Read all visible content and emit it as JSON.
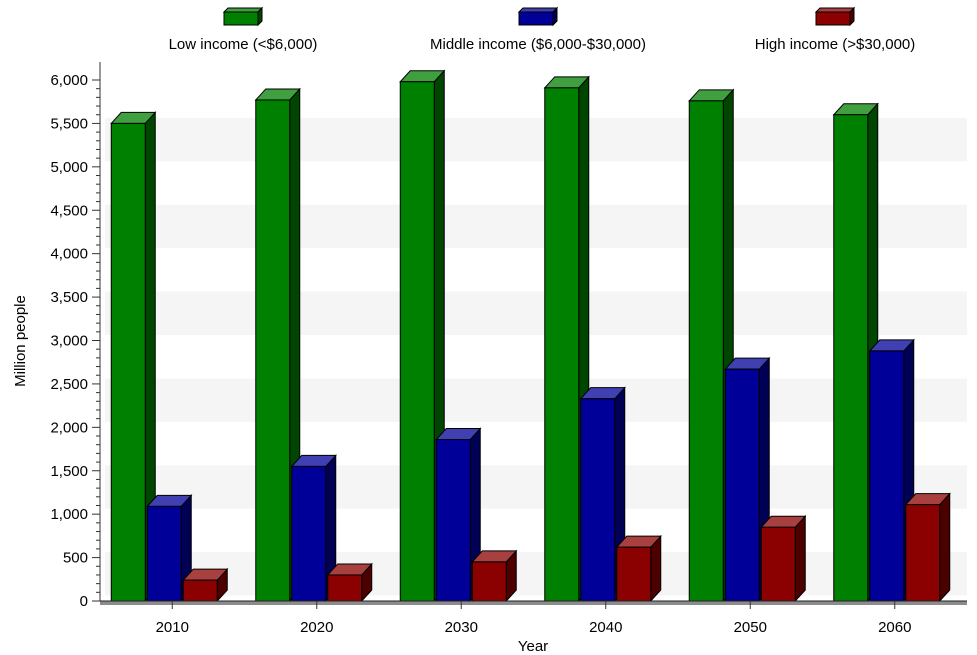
{
  "chart_data": {
    "type": "bar",
    "title": "",
    "xlabel": "Year",
    "ylabel": "Million people",
    "categories": [
      "2010",
      "2020",
      "2030",
      "2040",
      "2050",
      "2060"
    ],
    "ylim": [
      0,
      6000
    ],
    "yticks": [
      0,
      500,
      1000,
      1500,
      2000,
      2500,
      3000,
      3500,
      4000,
      4500,
      5000,
      5500,
      6000
    ],
    "ytick_labels": [
      "0",
      "500",
      "1,000",
      "1,500",
      "2,000",
      "2,500",
      "3,000",
      "3,500",
      "4,000",
      "4,500",
      "5,000",
      "5,500",
      "6,000"
    ],
    "grid": "horizontal alternating bands",
    "legend_position": "top",
    "style": "3d",
    "series": [
      {
        "name": "Low income (<$6,000)",
        "values": [
          5500,
          5770,
          5980,
          5910,
          5760,
          5600
        ],
        "color": "#008000"
      },
      {
        "name": "Middle income ($6,000-$30,000)",
        "values": [
          1090,
          1550,
          1860,
          2330,
          2670,
          2880
        ],
        "color": "#000099"
      },
      {
        "name": "High income (>$30,000)",
        "values": [
          240,
          300,
          450,
          620,
          850,
          1110
        ],
        "color": "#8b0000"
      }
    ]
  }
}
